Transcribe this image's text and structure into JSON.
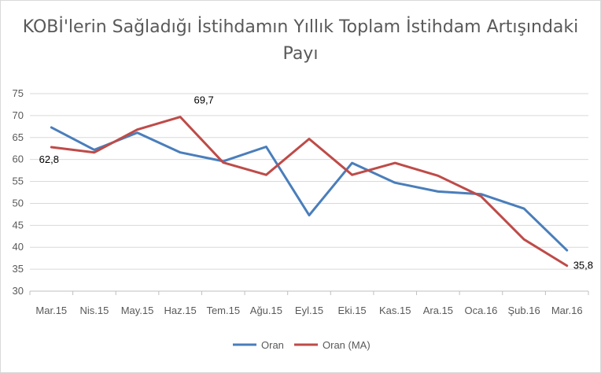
{
  "chart_data": {
    "type": "line",
    "title_line1": "KOBİ'lerin Sağladığı İstihdamın Yıllık Toplam İstihdam Artışındaki",
    "title_line2": "Payı",
    "categories": [
      "Mar.15",
      "Nis.15",
      "May.15",
      "Haz.15",
      "Tem.15",
      "Ağu.15",
      "Eyl.15",
      "Eki.15",
      "Kas.15",
      "Ara.15",
      "Oca.16",
      "Şub.16",
      "Mar.16"
    ],
    "ylim": [
      30,
      75
    ],
    "yticks": [
      30,
      35,
      40,
      45,
      50,
      55,
      60,
      65,
      70,
      75
    ],
    "grid": true,
    "legend_position": "bottom",
    "series": [
      {
        "name": "Oran",
        "color": "#4a7ebb",
        "values": [
          67.3,
          62.2,
          66.1,
          61.6,
          59.6,
          62.9,
          47.3,
          59.2,
          54.7,
          52.7,
          52.1,
          48.8,
          39.3
        ]
      },
      {
        "name": "Oran (MA)",
        "color": "#be4b48",
        "values": [
          62.8,
          61.6,
          66.8,
          69.7,
          59.3,
          56.5,
          64.7,
          56.5,
          59.2,
          56.3,
          51.6,
          41.8,
          35.8
        ]
      }
    ],
    "data_labels": [
      {
        "series": 1,
        "index": 0,
        "text": "62,8"
      },
      {
        "series": 1,
        "index": 3,
        "text": "69,7"
      },
      {
        "series": 1,
        "index": 12,
        "text": "35,8"
      }
    ]
  }
}
